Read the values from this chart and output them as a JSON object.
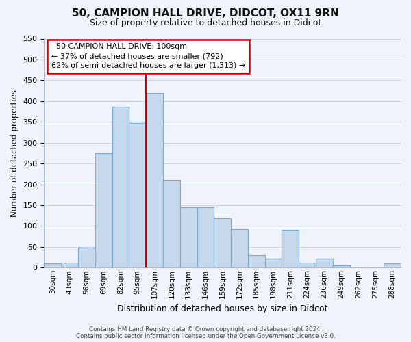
{
  "title": "50, CAMPION HALL DRIVE, DIDCOT, OX11 9RN",
  "subtitle": "Size of property relative to detached houses in Didcot",
  "xlabel": "Distribution of detached houses by size in Didcot",
  "ylabel": "Number of detached properties",
  "footer_line1": "Contains HM Land Registry data © Crown copyright and database right 2024.",
  "footer_line2": "Contains public sector information licensed under the Open Government Licence v3.0.",
  "categories": [
    "30sqm",
    "43sqm",
    "56sqm",
    "69sqm",
    "82sqm",
    "95sqm",
    "107sqm",
    "120sqm",
    "133sqm",
    "146sqm",
    "159sqm",
    "172sqm",
    "185sqm",
    "198sqm",
    "211sqm",
    "224sqm",
    "236sqm",
    "249sqm",
    "262sqm",
    "275sqm",
    "288sqm"
  ],
  "values": [
    10,
    12,
    48,
    275,
    387,
    347,
    420,
    210,
    145,
    145,
    118,
    93,
    30,
    22,
    90,
    12,
    22,
    5,
    0,
    0,
    10
  ],
  "bar_color": "#c6d9ec",
  "bar_edge_color": "#7aaacf",
  "ylim": [
    0,
    550
  ],
  "yticks": [
    0,
    50,
    100,
    150,
    200,
    250,
    300,
    350,
    400,
    450,
    500,
    550
  ],
  "pct_smaller": 37,
  "num_smaller": 792,
  "pct_larger": 62,
  "num_larger": 1313,
  "vline_color": "#cc0000",
  "vline_x": 5.5,
  "background_color": "#f0f4fa",
  "grid_color": "#c8d0dc",
  "ann_box_color": "#cc0000"
}
